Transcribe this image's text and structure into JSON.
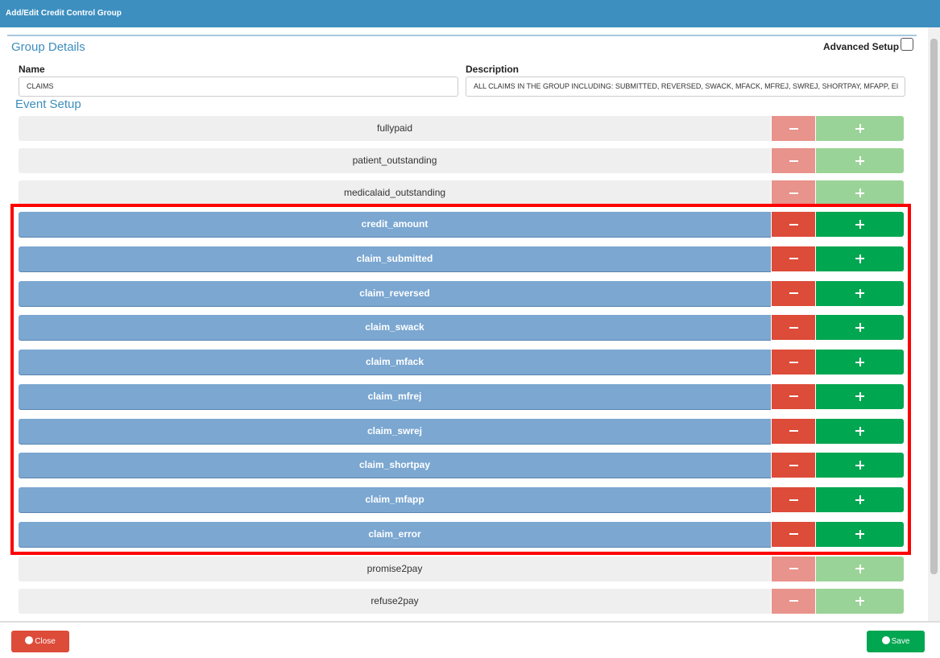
{
  "header": {
    "title": "Add/Edit Credit Control Group"
  },
  "group_details": {
    "title": "Group Details",
    "advanced_setup": "Advanced Setup",
    "name_label": "Name",
    "name_value": "CLAIMS",
    "description_label": "Description",
    "description_value": "ALL CLAIMS IN THE GROUP INCLUDING: SUBMITTED, REVERSED, SWACK, MFACK, MFREJ, SWREJ, SHORTPAY, MFAPP, EI"
  },
  "event_setup": {
    "title": "Event Setup",
    "events": [
      {
        "label": "fullypaid",
        "selected": false
      },
      {
        "label": "patient_outstanding",
        "selected": false
      },
      {
        "label": "medicalaid_outstanding",
        "selected": false
      },
      {
        "label": "credit_amount",
        "selected": true
      },
      {
        "label": "claim_submitted",
        "selected": true
      },
      {
        "label": "claim_reversed",
        "selected": true
      },
      {
        "label": "claim_swack",
        "selected": true
      },
      {
        "label": "claim_mfack",
        "selected": true
      },
      {
        "label": "claim_mfrej",
        "selected": true
      },
      {
        "label": "claim_swrej",
        "selected": true
      },
      {
        "label": "claim_shortpay",
        "selected": true
      },
      {
        "label": "claim_mfapp",
        "selected": true
      },
      {
        "label": "claim_error",
        "selected": true
      },
      {
        "label": "promise2pay",
        "selected": false
      },
      {
        "label": "refuse2pay",
        "selected": false
      }
    ]
  },
  "footer": {
    "close": "Close",
    "save": "Save"
  }
}
